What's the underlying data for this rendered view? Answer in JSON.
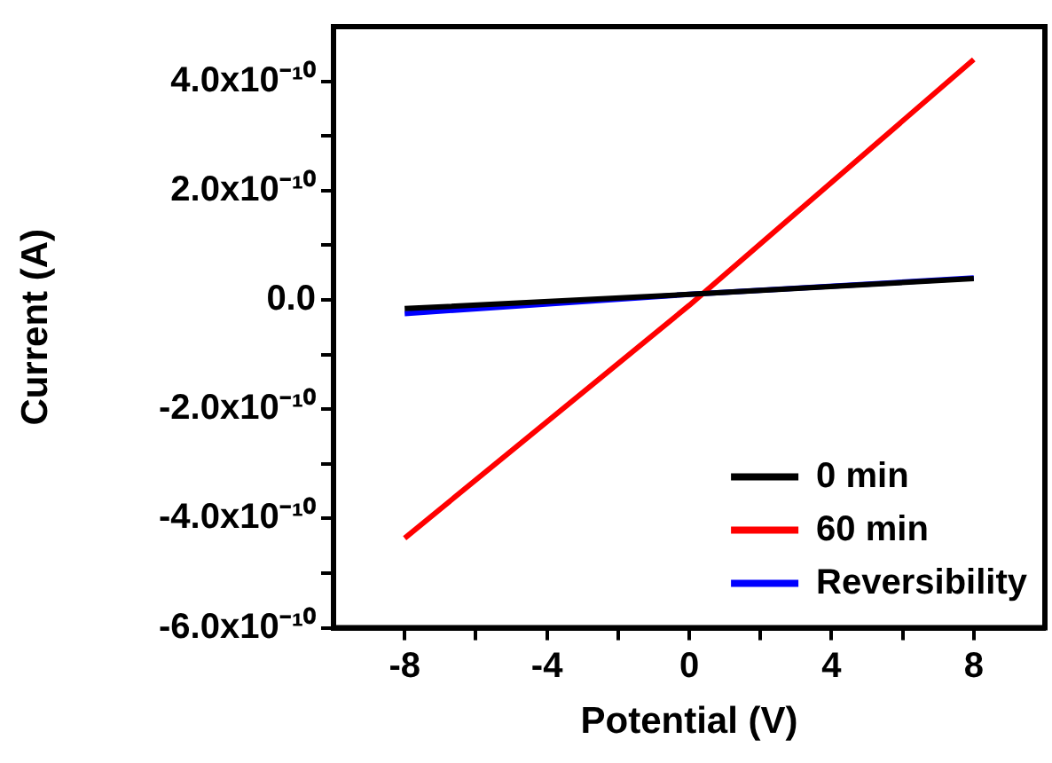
{
  "chart_data": {
    "type": "line",
    "xlabel": "Potential (V)",
    "ylabel": "Current (A)",
    "x": [
      -8,
      0,
      8
    ],
    "series": [
      {
        "name": "0 min",
        "color": "#000000",
        "values": [
          -1.6e-11,
          1e-11,
          3.9e-11
        ]
      },
      {
        "name": "60 min",
        "color": "#ff0000",
        "values": [
          -4.36e-10,
          -1e-11,
          4.4e-10
        ]
      },
      {
        "name": "Reversibility",
        "color": "#0000ff",
        "values": [
          -2.5e-11,
          1e-11,
          4e-11
        ]
      }
    ],
    "xlim": [
      -10,
      10
    ],
    "xticks": [
      -8,
      {
        "value": -6,
        "label": null
      },
      -4,
      {
        "value": -2,
        "label": null
      },
      0,
      {
        "value": 2,
        "label": null
      },
      4,
      {
        "value": 6,
        "label": null
      },
      8
    ],
    "ylim": [
      -6e-10,
      5e-10
    ],
    "yticks": [
      {
        "value": -6e-10,
        "label": "-6.0x10⁻¹⁰"
      },
      {
        "value": -5e-10,
        "label": null
      },
      {
        "value": -4e-10,
        "label": "-4.0x10⁻¹⁰"
      },
      {
        "value": -3e-10,
        "label": null
      },
      {
        "value": -2e-10,
        "label": "-2.0x10⁻¹⁰"
      },
      {
        "value": -1e-10,
        "label": null
      },
      {
        "value": 0,
        "label": "0.0"
      },
      {
        "value": 1e-10,
        "label": null
      },
      {
        "value": 2e-10,
        "label": "2.0x10⁻¹⁰"
      },
      {
        "value": 3e-10,
        "label": null
      },
      {
        "value": 4e-10,
        "label": "4.0x10⁻¹⁰"
      }
    ],
    "grid": false,
    "legend": "bottom right",
    "marker": "none",
    "line_style": "solid"
  }
}
